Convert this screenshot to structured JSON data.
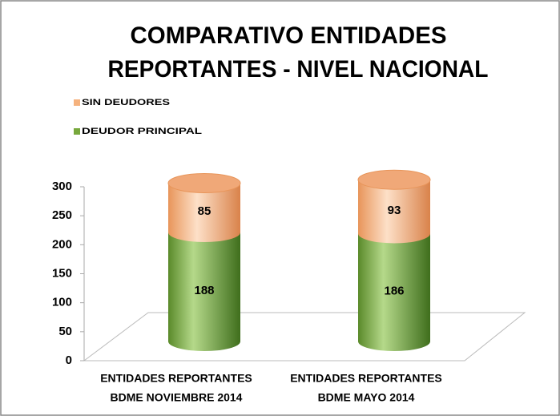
{
  "chart_data": {
    "type": "stacked-cylinder",
    "title": [
      "COMPARATIVO ENTIDADES",
      "REPORTANTES -  NIVEL NACIONAL"
    ],
    "categories": [
      [
        "ENTIDADES  REPORTANTES",
        "BDME NOVIEMBRE  2014"
      ],
      [
        "ENTIDADES  REPORTANTES",
        "BDME MAYO 2014"
      ]
    ],
    "series": [
      {
        "name": "DEUDOR PRINCIPAL",
        "color": "#77a83c",
        "values": [
          188,
          186
        ]
      },
      {
        "name": "SIN DEUDORES",
        "color": "#f5b27e",
        "values": [
          85,
          93
        ]
      }
    ],
    "ylim": [
      0,
      300
    ],
    "yticks": [
      0,
      50,
      100,
      150,
      200,
      250,
      300
    ]
  }
}
